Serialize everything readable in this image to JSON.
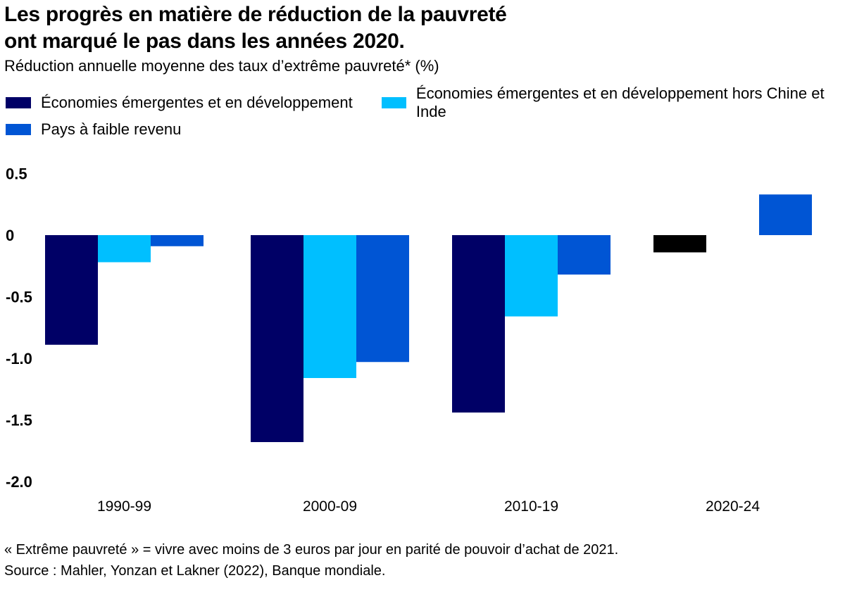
{
  "header": {
    "title_line1": "Les progrès en matière de réduction de la pauvreté",
    "title_line2": "ont marqué le pas dans les années 2020.",
    "subtitle": "Réduction annuelle moyenne des taux d’extrême pauvreté* (%)"
  },
  "legend": [
    {
      "label": "Économies émergentes et en développement",
      "color": "#000066"
    },
    {
      "label": "Économies émergentes et en développement hors Chine et Inde",
      "color": "#00bfff"
    },
    {
      "label": "Pays à faible revenu",
      "color": "#0055d4"
    }
  ],
  "footnote": {
    "line1": "« Extrême pauvreté » = vivre avec moins de 3 euros par jour en parité de pouvoir d’achat de 2021.",
    "line2": "Source : Mahler, Yonzan et Lakner (2022), Banque mondiale."
  },
  "chart_data": {
    "type": "bar",
    "categories": [
      "1990-99",
      "2000-09",
      "2010-19",
      "2020-24"
    ],
    "series": [
      {
        "name": "Économies émergentes et en développement",
        "color": "#000066",
        "values": [
          -0.89,
          -1.68,
          -1.44,
          -0.14
        ]
      },
      {
        "name": "Économies émergentes et en développement hors Chine et Inde",
        "color": "#00bfff",
        "values": [
          -0.22,
          -1.16,
          -0.66,
          null
        ]
      },
      {
        "name": "Pays à faible revenu",
        "color": "#0055d4",
        "values": [
          -0.09,
          -1.03,
          -0.32,
          0.33
        ]
      }
    ],
    "special_bar_colors": {
      "2020-24": {
        "0": "#000000"
      }
    },
    "yticks": [
      "0.5",
      "0",
      "-0.5",
      "-1.0",
      "-1.5",
      "-2.0"
    ],
    "ytick_values": [
      0.5,
      0,
      -0.5,
      -1.0,
      -1.5,
      -2.0
    ],
    "ylim": [
      -2.0,
      0.5
    ],
    "grid": false,
    "legend_position": "top"
  }
}
